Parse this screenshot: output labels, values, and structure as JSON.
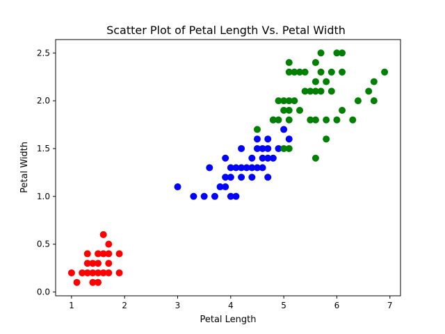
{
  "chart_data": {
    "type": "scatter",
    "title": "Scatter Plot of Petal Length Vs. Petal Width",
    "xlabel": "Petal Length",
    "ylabel": "Petal Width",
    "xlim": [
      0.7,
      7.2
    ],
    "ylim": [
      -0.04,
      2.64
    ],
    "xticks": [
      1,
      2,
      3,
      4,
      5,
      6,
      7
    ],
    "yticks": [
      0.0,
      0.5,
      1.0,
      1.5,
      2.0,
      2.5
    ],
    "ytick_labels": [
      "0.0",
      "0.5",
      "1.0",
      "1.5",
      "2.0",
      "2.5"
    ],
    "grid": false,
    "legend": "none",
    "series": [
      {
        "color": "#ff0000",
        "points": [
          [
            1.0,
            0.2
          ],
          [
            1.1,
            0.1
          ],
          [
            1.2,
            0.2
          ],
          [
            1.3,
            0.2
          ],
          [
            1.3,
            0.3
          ],
          [
            1.3,
            0.4
          ],
          [
            1.4,
            0.1
          ],
          [
            1.4,
            0.2
          ],
          [
            1.4,
            0.3
          ],
          [
            1.5,
            0.1
          ],
          [
            1.5,
            0.2
          ],
          [
            1.5,
            0.3
          ],
          [
            1.5,
            0.4
          ],
          [
            1.6,
            0.2
          ],
          [
            1.6,
            0.4
          ],
          [
            1.6,
            0.6
          ],
          [
            1.7,
            0.2
          ],
          [
            1.7,
            0.3
          ],
          [
            1.7,
            0.4
          ],
          [
            1.7,
            0.5
          ],
          [
            1.9,
            0.2
          ],
          [
            1.9,
            0.4
          ]
        ]
      },
      {
        "color": "#0000ff",
        "points": [
          [
            3.0,
            1.1
          ],
          [
            3.3,
            1.0
          ],
          [
            3.5,
            1.0
          ],
          [
            3.6,
            1.3
          ],
          [
            3.7,
            1.0
          ],
          [
            3.8,
            1.1
          ],
          [
            3.9,
            1.1
          ],
          [
            3.9,
            1.2
          ],
          [
            3.9,
            1.4
          ],
          [
            4.0,
            1.0
          ],
          [
            4.0,
            1.2
          ],
          [
            4.0,
            1.3
          ],
          [
            4.1,
            1.0
          ],
          [
            4.1,
            1.3
          ],
          [
            4.2,
            1.2
          ],
          [
            4.2,
            1.3
          ],
          [
            4.2,
            1.5
          ],
          [
            4.3,
            1.3
          ],
          [
            4.4,
            1.2
          ],
          [
            4.4,
            1.3
          ],
          [
            4.4,
            1.4
          ],
          [
            4.5,
            1.3
          ],
          [
            4.5,
            1.5
          ],
          [
            4.5,
            1.6
          ],
          [
            4.6,
            1.3
          ],
          [
            4.6,
            1.4
          ],
          [
            4.6,
            1.5
          ],
          [
            4.7,
            1.2
          ],
          [
            4.7,
            1.4
          ],
          [
            4.7,
            1.5
          ],
          [
            4.7,
            1.6
          ],
          [
            4.8,
            1.4
          ],
          [
            4.8,
            1.8
          ],
          [
            4.9,
            1.5
          ],
          [
            5.0,
            1.7
          ],
          [
            5.1,
            1.6
          ]
        ]
      },
      {
        "color": "#008000",
        "points": [
          [
            4.5,
            1.7
          ],
          [
            4.8,
            1.8
          ],
          [
            4.9,
            1.8
          ],
          [
            4.9,
            2.0
          ],
          [
            5.0,
            1.5
          ],
          [
            5.0,
            1.9
          ],
          [
            5.0,
            2.0
          ],
          [
            5.1,
            1.5
          ],
          [
            5.1,
            1.8
          ],
          [
            5.1,
            1.9
          ],
          [
            5.1,
            2.0
          ],
          [
            5.1,
            2.3
          ],
          [
            5.1,
            2.4
          ],
          [
            5.2,
            2.0
          ],
          [
            5.2,
            2.3
          ],
          [
            5.3,
            1.9
          ],
          [
            5.3,
            2.3
          ],
          [
            5.4,
            2.1
          ],
          [
            5.4,
            2.3
          ],
          [
            5.5,
            1.8
          ],
          [
            5.5,
            2.1
          ],
          [
            5.6,
            1.4
          ],
          [
            5.6,
            1.8
          ],
          [
            5.6,
            2.1
          ],
          [
            5.6,
            2.2
          ],
          [
            5.6,
            2.4
          ],
          [
            5.7,
            2.1
          ],
          [
            5.7,
            2.3
          ],
          [
            5.7,
            2.5
          ],
          [
            5.8,
            1.6
          ],
          [
            5.8,
            1.8
          ],
          [
            5.8,
            2.2
          ],
          [
            5.9,
            2.1
          ],
          [
            5.9,
            2.3
          ],
          [
            6.0,
            1.8
          ],
          [
            6.0,
            2.5
          ],
          [
            6.1,
            1.9
          ],
          [
            6.1,
            2.3
          ],
          [
            6.1,
            2.5
          ],
          [
            6.3,
            1.8
          ],
          [
            6.4,
            2.0
          ],
          [
            6.6,
            2.1
          ],
          [
            6.7,
            2.0
          ],
          [
            6.7,
            2.2
          ],
          [
            6.9,
            2.3
          ]
        ]
      }
    ]
  }
}
